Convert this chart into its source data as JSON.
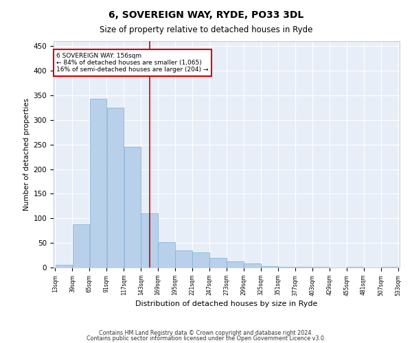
{
  "title": "6, SOVEREIGN WAY, RYDE, PO33 3DL",
  "subtitle": "Size of property relative to detached houses in Ryde",
  "xlabel": "Distribution of detached houses by size in Ryde",
  "ylabel": "Number of detached properties",
  "footnote1": "Contains HM Land Registry data © Crown copyright and database right 2024.",
  "footnote2": "Contains public sector information licensed under the Open Government Licence v3.0.",
  "bar_color": "#b8d0ea",
  "bar_edge_color": "#7aafd4",
  "background_color": "#e8eef8",
  "grid_color": "#ffffff",
  "vline_color": "#cc0000",
  "vline_x": 156,
  "annotation_line1": "6 SOVEREIGN WAY: 156sqm",
  "annotation_line2": "← 84% of detached houses are smaller (1,065)",
  "annotation_line3": "16% of semi-detached houses are larger (204) →",
  "annotation_box_color": "#cc0000",
  "bins": [
    13,
    39,
    65,
    91,
    117,
    143,
    169,
    195,
    221,
    247,
    273,
    299,
    325,
    351,
    377,
    403,
    429,
    455,
    481,
    507,
    533
  ],
  "values": [
    5,
    88,
    343,
    325,
    245,
    110,
    52,
    35,
    30,
    20,
    12,
    8,
    3,
    2,
    2,
    2,
    0,
    1,
    0,
    1
  ],
  "ylim": [
    0,
    460
  ],
  "yticks": [
    0,
    50,
    100,
    150,
    200,
    250,
    300,
    350,
    400,
    450
  ]
}
